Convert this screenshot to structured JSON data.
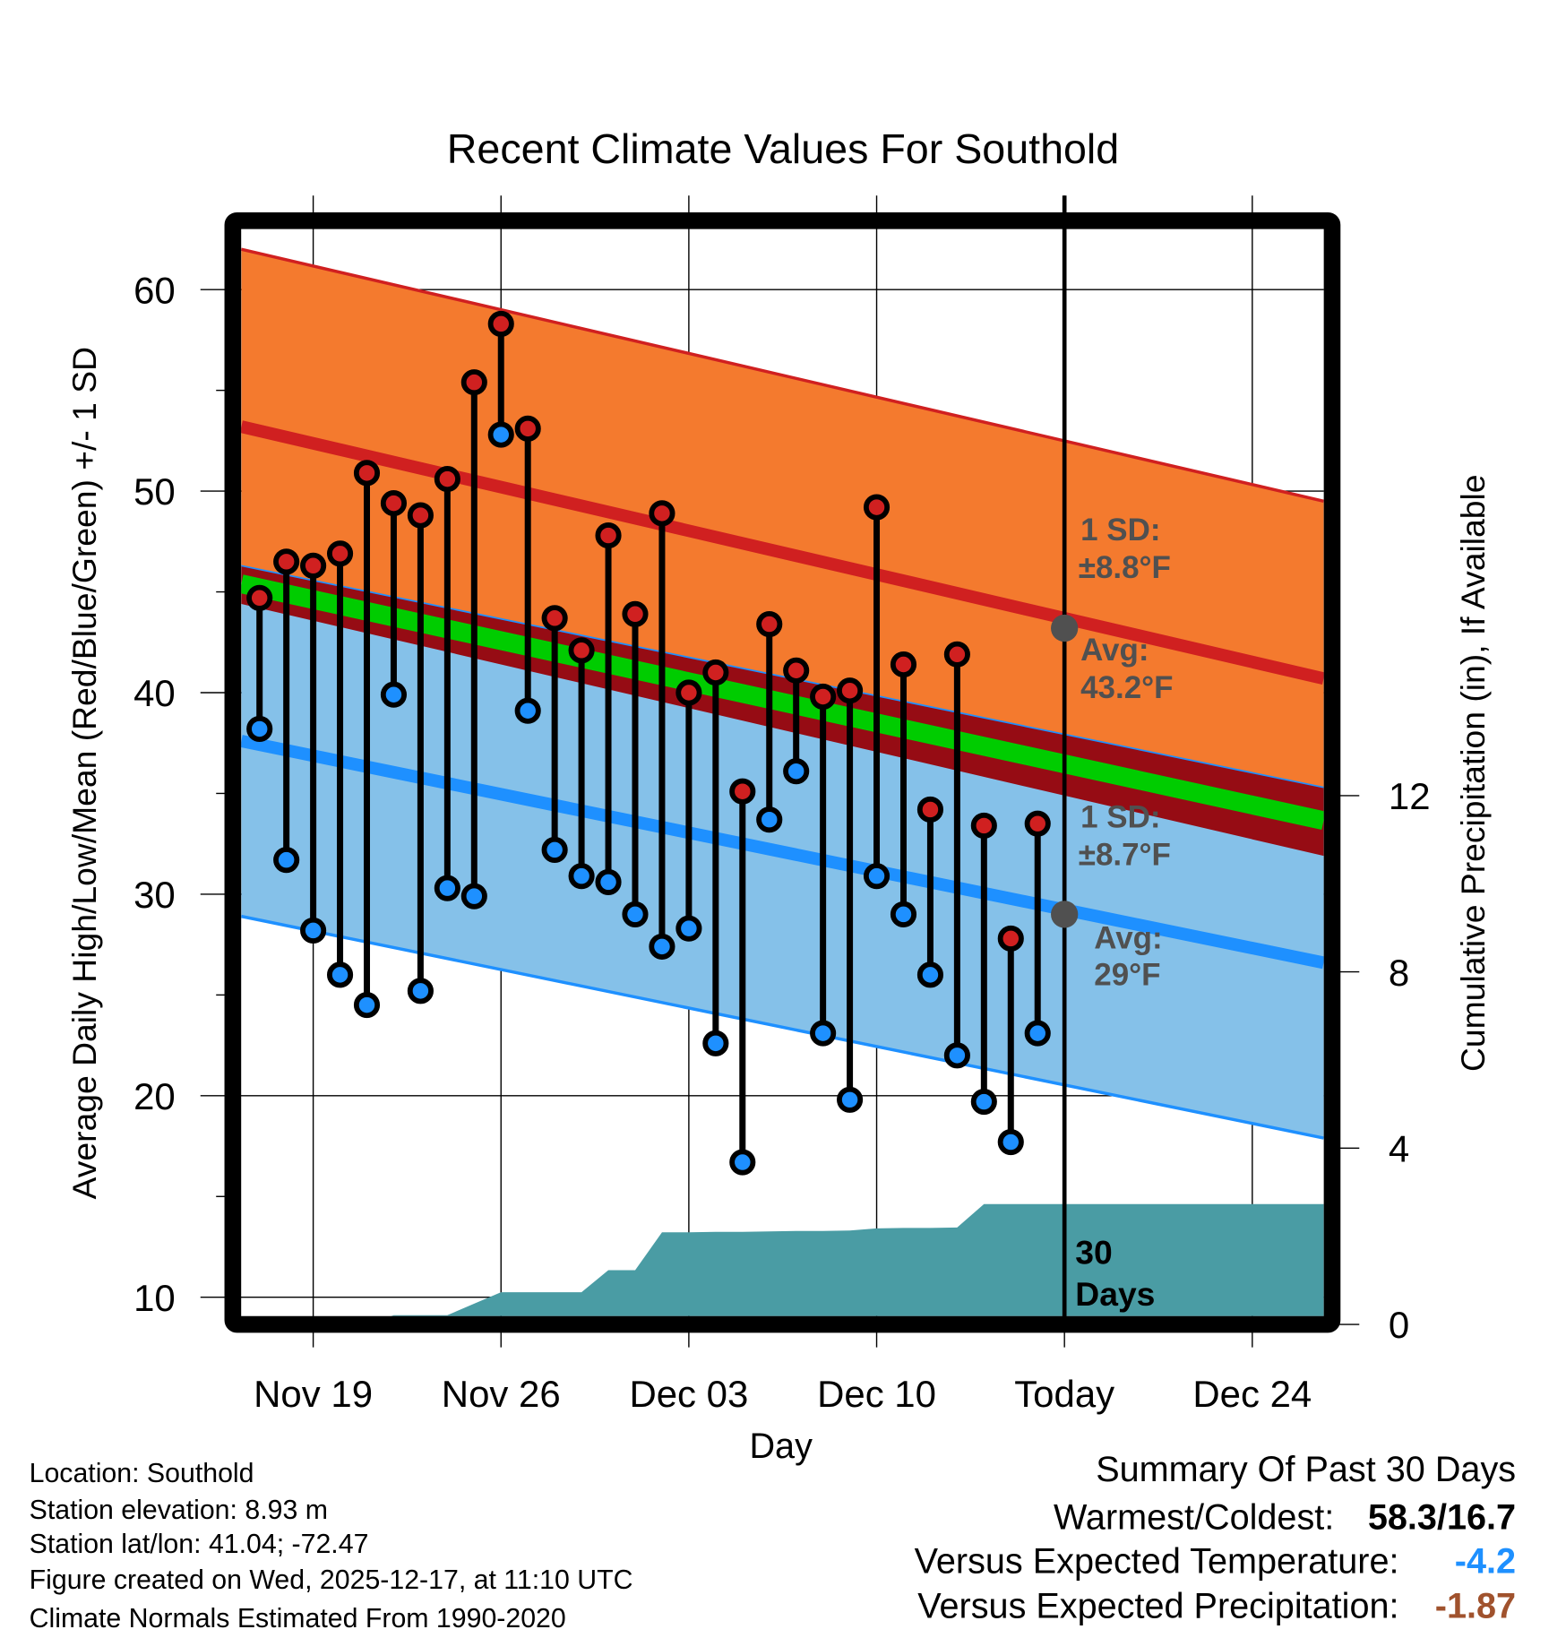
{
  "chart_data": {
    "type": "line",
    "title": "Recent Climate Values For Southold",
    "xlabel": "Day",
    "ylabel": "Average Daily High/Low/Mean (Red/Blue/Green) +/- 1 SD",
    "y2label": "Cumulative Precipitation (in), If Available",
    "ylim": [
      8.7,
      63.5
    ],
    "y2lim": [
      0,
      15
    ],
    "y_ticks": [
      "60",
      "50",
      "40",
      "30",
      "20",
      "10"
    ],
    "y_tick_values": [
      60,
      50,
      40,
      30,
      20,
      10
    ],
    "y2_ticks": [
      "12",
      "8",
      "4",
      "0"
    ],
    "y2_tick_values": [
      12,
      8,
      4,
      0
    ],
    "x_ticks": [
      "Nov 19",
      "Nov 26",
      "Dec 03",
      "Dec 10",
      "Today",
      "Dec 24"
    ],
    "x_tick_day_index": [
      2,
      9,
      16,
      23,
      30,
      37
    ],
    "x_range_day_index": [
      -0.68,
      39.66
    ],
    "days": [
      "Nov 17",
      "Nov 18",
      "Nov 19",
      "Nov 20",
      "Nov 21",
      "Nov 22",
      "Nov 23",
      "Nov 24",
      "Nov 25",
      "Nov 26",
      "Nov 27",
      "Nov 28",
      "Nov 29",
      "Nov 30",
      "Dec 01",
      "Dec 02",
      "Dec 03",
      "Dec 04",
      "Dec 05",
      "Dec 06",
      "Dec 07",
      "Dec 08",
      "Dec 09",
      "Dec 10",
      "Dec 11",
      "Dec 12",
      "Dec 13",
      "Dec 14",
      "Dec 15",
      "Dec 16"
    ],
    "series": [
      {
        "name": "Daily High",
        "color": "#D02020",
        "values": [
          44.7,
          46.5,
          46.3,
          46.9,
          50.9,
          49.4,
          48.8,
          50.6,
          55.4,
          58.3,
          53.1,
          43.7,
          42.1,
          47.8,
          43.9,
          48.9,
          40.0,
          41.0,
          35.1,
          43.4,
          41.1,
          39.8,
          40.1,
          49.2,
          41.4,
          34.2,
          41.9,
          33.4,
          27.8,
          33.5
        ]
      },
      {
        "name": "Daily Low",
        "color": "#1E90FF",
        "values": [
          38.2,
          31.7,
          28.2,
          26.0,
          24.5,
          39.9,
          25.2,
          30.3,
          29.9,
          52.8,
          39.1,
          32.2,
          30.9,
          30.6,
          29.0,
          27.4,
          28.3,
          22.6,
          16.7,
          33.7,
          36.1,
          23.1,
          19.8,
          30.9,
          29.0,
          26.0,
          22.0,
          19.7,
          17.7,
          23.1
        ]
      },
      {
        "name": "Cumulative Precipitation",
        "color": "#4A9CA4",
        "axis": "right",
        "values": [
          0,
          0,
          0,
          0,
          0,
          0.21,
          0.21,
          0.21,
          0.47,
          0.73,
          0.73,
          0.73,
          0.73,
          1.23,
          1.23,
          2.09,
          2.09,
          2.1,
          2.1,
          2.11,
          2.12,
          2.12,
          2.13,
          2.18,
          2.19,
          2.19,
          2.2,
          2.73,
          2.73,
          2.73
        ]
      }
    ],
    "normals": {
      "high_avg": {
        "start": 53.2,
        "end": 40.7,
        "color": "#D02020"
      },
      "high_sd": 8.8,
      "low_avg": {
        "start": 37.6,
        "end": 26.6,
        "color": "#1E90FF"
      },
      "low_sd": 8.7,
      "mean_color": "#00CC00",
      "high_band_color": "#F47A2E",
      "low_band_color": "#85C1E9",
      "overlap_color": "#960C14"
    },
    "today_markers": {
      "high_avg": 43.2,
      "low_avg": 29
    },
    "annotations": {
      "high_sd_1": "1 SD:",
      "high_sd_2": "±8.8°F",
      "high_avg_1": "Avg:",
      "high_avg_2": "43.2°F",
      "low_sd_1": "1 SD:",
      "low_sd_2": "±8.7°F",
      "low_avg_1": "Avg:",
      "low_avg_2": "29°F",
      "days_1": "30",
      "days_2": "Days"
    },
    "grid": true,
    "legend": "none"
  },
  "info": {
    "location": "Location: Southold",
    "elevation": "Station elevation: 8.93 m",
    "latlon": "Station lat/lon: 41.04; -72.47",
    "created": "Figure created on Wed, 2025-12-17, at 11:10 UTC",
    "normals": "Climate Normals Estimated From 1990-2020"
  },
  "summary": {
    "title": "Summary Of Past 30 Days",
    "warmest_label": "Warmest/Coldest:",
    "warmest_value": "58.3/16.7",
    "temp_label": "Versus Expected Temperature:",
    "temp_value": "-4.2",
    "temp_color": "#1E90FF",
    "precip_label": "Versus Expected Precipitation:",
    "precip_value": "-1.87",
    "precip_color": "#A0522D"
  }
}
